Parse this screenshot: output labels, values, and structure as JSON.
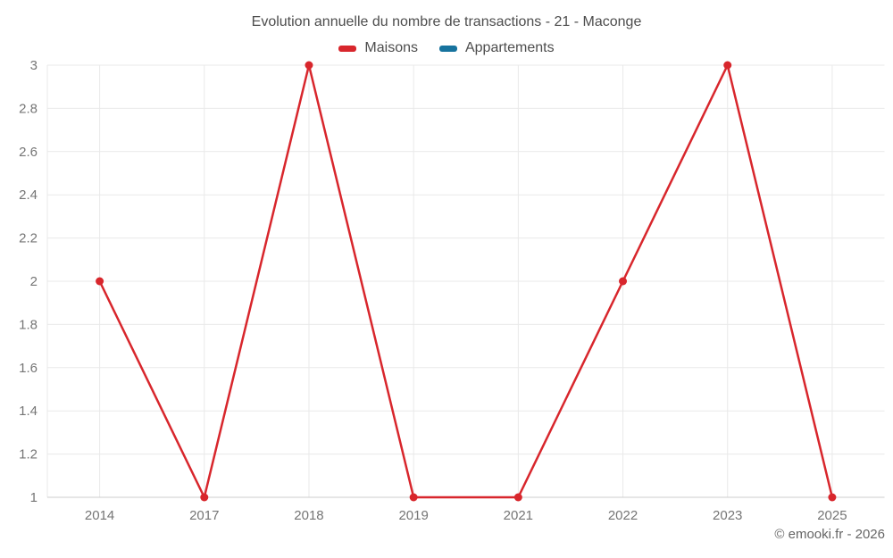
{
  "chart": {
    "title": "Evolution annuelle du nombre de transactions - 21 - Maconge",
    "attribution": "© emooki.fr - 2026",
    "colors": {
      "grid": "#e9e9e9",
      "axis": "#cccccc",
      "tick_text": "#757575",
      "maisons_red": "#d8262c",
      "appartements_blue": "#17739e"
    }
  },
  "chart_data": {
    "type": "line",
    "title": "Evolution annuelle du nombre de transactions - 21 - Maconge",
    "categories": [
      "2014",
      "2017",
      "2018",
      "2019",
      "2021",
      "2022",
      "2023",
      "2025"
    ],
    "series": [
      {
        "name": "Maisons",
        "color": "#d8262c",
        "values": [
          2,
          1,
          3,
          1,
          1,
          2,
          3,
          1
        ]
      },
      {
        "name": "Appartements",
        "color": "#17739e",
        "values": []
      }
    ],
    "xlabel": "",
    "ylabel": "",
    "ylim": [
      1,
      3
    ],
    "ytick_step": 0.2,
    "ytick_labels": [
      "1",
      "1.2",
      "1.4",
      "1.6",
      "1.8",
      "2",
      "2.2",
      "2.4",
      "2.6",
      "2.8",
      "3"
    ],
    "grid": true,
    "legend_position": "top"
  }
}
